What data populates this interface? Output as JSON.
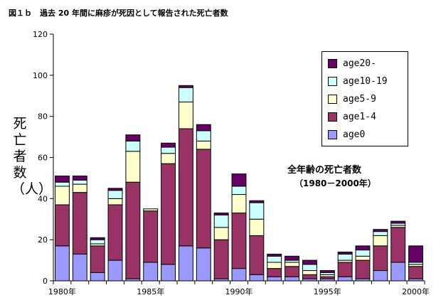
{
  "title": "図１ｂ　過去 20 年間に麻疹が死因として報告された死亡者数",
  "chart_data": {
    "type": "bar",
    "stacked": true,
    "ylabel": "死亡者数（人）",
    "ylim": [
      0,
      120
    ],
    "yticks": [
      0,
      20,
      40,
      60,
      80,
      100,
      120
    ],
    "grid": false,
    "legend_placement": "top-right",
    "x_tick_labels": [
      {
        "year": 1980,
        "label": "1980年"
      },
      {
        "year": 1985,
        "label": "1985年"
      },
      {
        "year": 1990,
        "label": "1990年"
      },
      {
        "year": 1995,
        "label": "1995年"
      },
      {
        "year": 2000,
        "label": "2000年"
      }
    ],
    "categories": [
      1980,
      1981,
      1982,
      1983,
      1984,
      1985,
      1986,
      1987,
      1988,
      1989,
      1990,
      1991,
      1992,
      1993,
      1994,
      1995,
      1996,
      1997,
      1998,
      1999,
      2000
    ],
    "series": [
      {
        "name": "age0",
        "color": "#9999ff",
        "values": [
          17,
          13,
          4,
          10,
          1,
          9,
          8,
          17,
          16,
          1,
          6,
          3,
          2,
          2,
          1,
          1,
          2,
          1,
          5,
          9,
          1
        ]
      },
      {
        "name": "age1-4",
        "color": "#993366",
        "values": [
          20,
          30,
          13,
          27,
          47,
          25,
          49,
          57,
          48,
          19,
          27,
          19,
          4,
          5,
          2,
          1,
          7,
          9,
          12,
          17,
          6
        ]
      },
      {
        "name": "age5-9",
        "color": "#ffffcc",
        "values": [
          9,
          4,
          1,
          3,
          15,
          1,
          5,
          13,
          4,
          6,
          9,
          8,
          3,
          2,
          2,
          1,
          1,
          2,
          5,
          1,
          1
        ]
      },
      {
        "name": "age10-19",
        "color": "#ccffff",
        "values": [
          2,
          2,
          2,
          4,
          5,
          0,
          3,
          7,
          5,
          6,
          4,
          8,
          3,
          1,
          3,
          1,
          3,
          3,
          2,
          1,
          1
        ]
      },
      {
        "name": "age20-",
        "color": "#660066",
        "values": [
          3,
          2,
          1,
          1,
          3,
          0,
          2,
          1,
          3,
          1,
          6,
          1,
          1,
          2,
          2,
          1,
          1,
          2,
          1,
          1,
          8
        ]
      }
    ]
  },
  "annotation": {
    "main": "全年齢の死亡者数",
    "sub": "（1980－2000年）"
  }
}
